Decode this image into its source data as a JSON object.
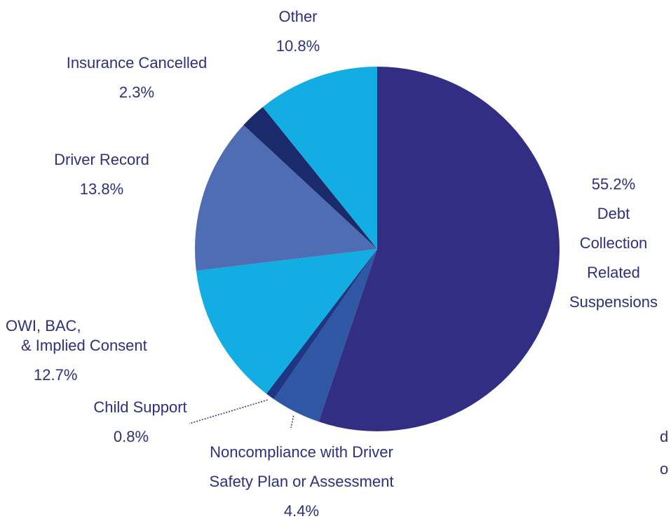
{
  "chart_data": {
    "type": "pie",
    "title": "",
    "slices": [
      {
        "label_lines": [
          "Debt",
          "Collection",
          "Related",
          "Suspensions"
        ],
        "value": 55.2,
        "pct": "55.2%",
        "color": "#322e83"
      },
      {
        "label_lines": [
          "Noncompliance with Driver",
          "Safety Plan or Assessment"
        ],
        "value": 4.4,
        "pct": "4.4%",
        "color": "#2f57a3"
      },
      {
        "label_lines": [
          "Child Support"
        ],
        "value": 0.8,
        "pct": "0.8%",
        "color": "#1f3683"
      },
      {
        "label_lines": [
          "OWI, BAC,",
          "& Implied Consent"
        ],
        "value": 12.7,
        "pct": "12.7%",
        "color": "#12ade3"
      },
      {
        "label_lines": [
          "Driver Record"
        ],
        "value": 13.8,
        "pct": "13.8%",
        "color": "#4e6db3"
      },
      {
        "label_lines": [
          "Insurance Cancelled"
        ],
        "value": 2.3,
        "pct": "2.3%",
        "color": "#1b2a6b"
      },
      {
        "label_lines": [
          "Other"
        ],
        "value": 10.8,
        "pct": "10.8%",
        "color": "#12ade3"
      }
    ]
  },
  "edge_fragments": [
    "d",
    "o"
  ]
}
